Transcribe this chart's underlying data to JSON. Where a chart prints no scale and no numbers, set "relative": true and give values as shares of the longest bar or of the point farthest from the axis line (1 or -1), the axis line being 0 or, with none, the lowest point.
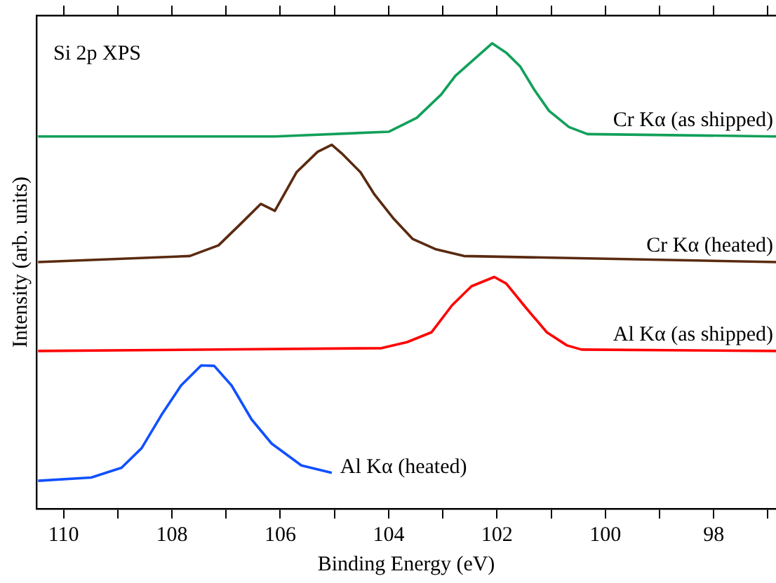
{
  "chart_data": {
    "type": "line",
    "title": "Si 2p XPS",
    "xlabel": "Binding Energy (eV)",
    "ylabel": "Intensity (arb. units)",
    "relative": true,
    "xlim": [
      110.5,
      96.85
    ],
    "xticks": [
      110,
      {
        "value": 109,
        "label": null
      },
      108,
      {
        "value": 107,
        "label": null
      },
      106,
      {
        "value": 105,
        "label": null
      },
      104,
      {
        "value": 103,
        "label": null
      },
      102,
      {
        "value": 101,
        "label": null
      },
      100,
      {
        "value": 99,
        "label": null
      },
      98,
      {
        "value": 97,
        "label": null
      }
    ],
    "grid": false,
    "legend": false,
    "marker": "none",
    "line_style": "solid",
    "series": [
      {
        "name": "Cr Kα (as shipped)",
        "color": "#12a05a",
        "x": [
          110.47,
          106.1,
          104.0,
          103.48,
          103.03,
          102.77,
          102.43,
          102.09,
          101.83,
          101.57,
          101.31,
          101.04,
          100.67,
          100.33,
          96.85
        ],
        "values": [
          0.8,
          0.8,
          0.81,
          0.84,
          0.89,
          0.93,
          0.965,
          1.0,
          0.98,
          0.95,
          0.9,
          0.855,
          0.82,
          0.805,
          0.8
        ]
      },
      {
        "name": "Cr Kα (heated)",
        "color": "#5a2a10",
        "x": [
          110.47,
          107.67,
          107.14,
          106.75,
          106.36,
          106.1,
          105.7,
          105.31,
          105.05,
          104.87,
          104.52,
          104.26,
          103.92,
          103.56,
          103.14,
          102.61,
          96.85
        ],
        "values": [
          0.53,
          0.543,
          0.566,
          0.61,
          0.655,
          0.64,
          0.723,
          0.767,
          0.782,
          0.764,
          0.723,
          0.675,
          0.625,
          0.58,
          0.558,
          0.543,
          0.53
        ]
      },
      {
        "name": "Al Kα (as shipped)",
        "color": "#ff0000",
        "x": [
          110.47,
          104.13,
          103.66,
          103.21,
          102.83,
          102.47,
          102.05,
          101.83,
          101.46,
          101.08,
          100.71,
          100.44,
          96.85
        ],
        "values": [
          0.339,
          0.345,
          0.358,
          0.379,
          0.437,
          0.478,
          0.498,
          0.484,
          0.431,
          0.379,
          0.351,
          0.342,
          0.339
        ]
      },
      {
        "name": "Al Kα (heated)",
        "color": "#1050ff",
        "x": [
          110.47,
          109.49,
          108.93,
          108.56,
          108.19,
          107.83,
          107.46,
          107.22,
          106.9,
          106.53,
          106.16,
          105.61,
          105.05
        ],
        "values": [
          0.06,
          0.067,
          0.088,
          0.13,
          0.202,
          0.265,
          0.308,
          0.307,
          0.265,
          0.192,
          0.14,
          0.093,
          0.077
        ]
      }
    ]
  }
}
